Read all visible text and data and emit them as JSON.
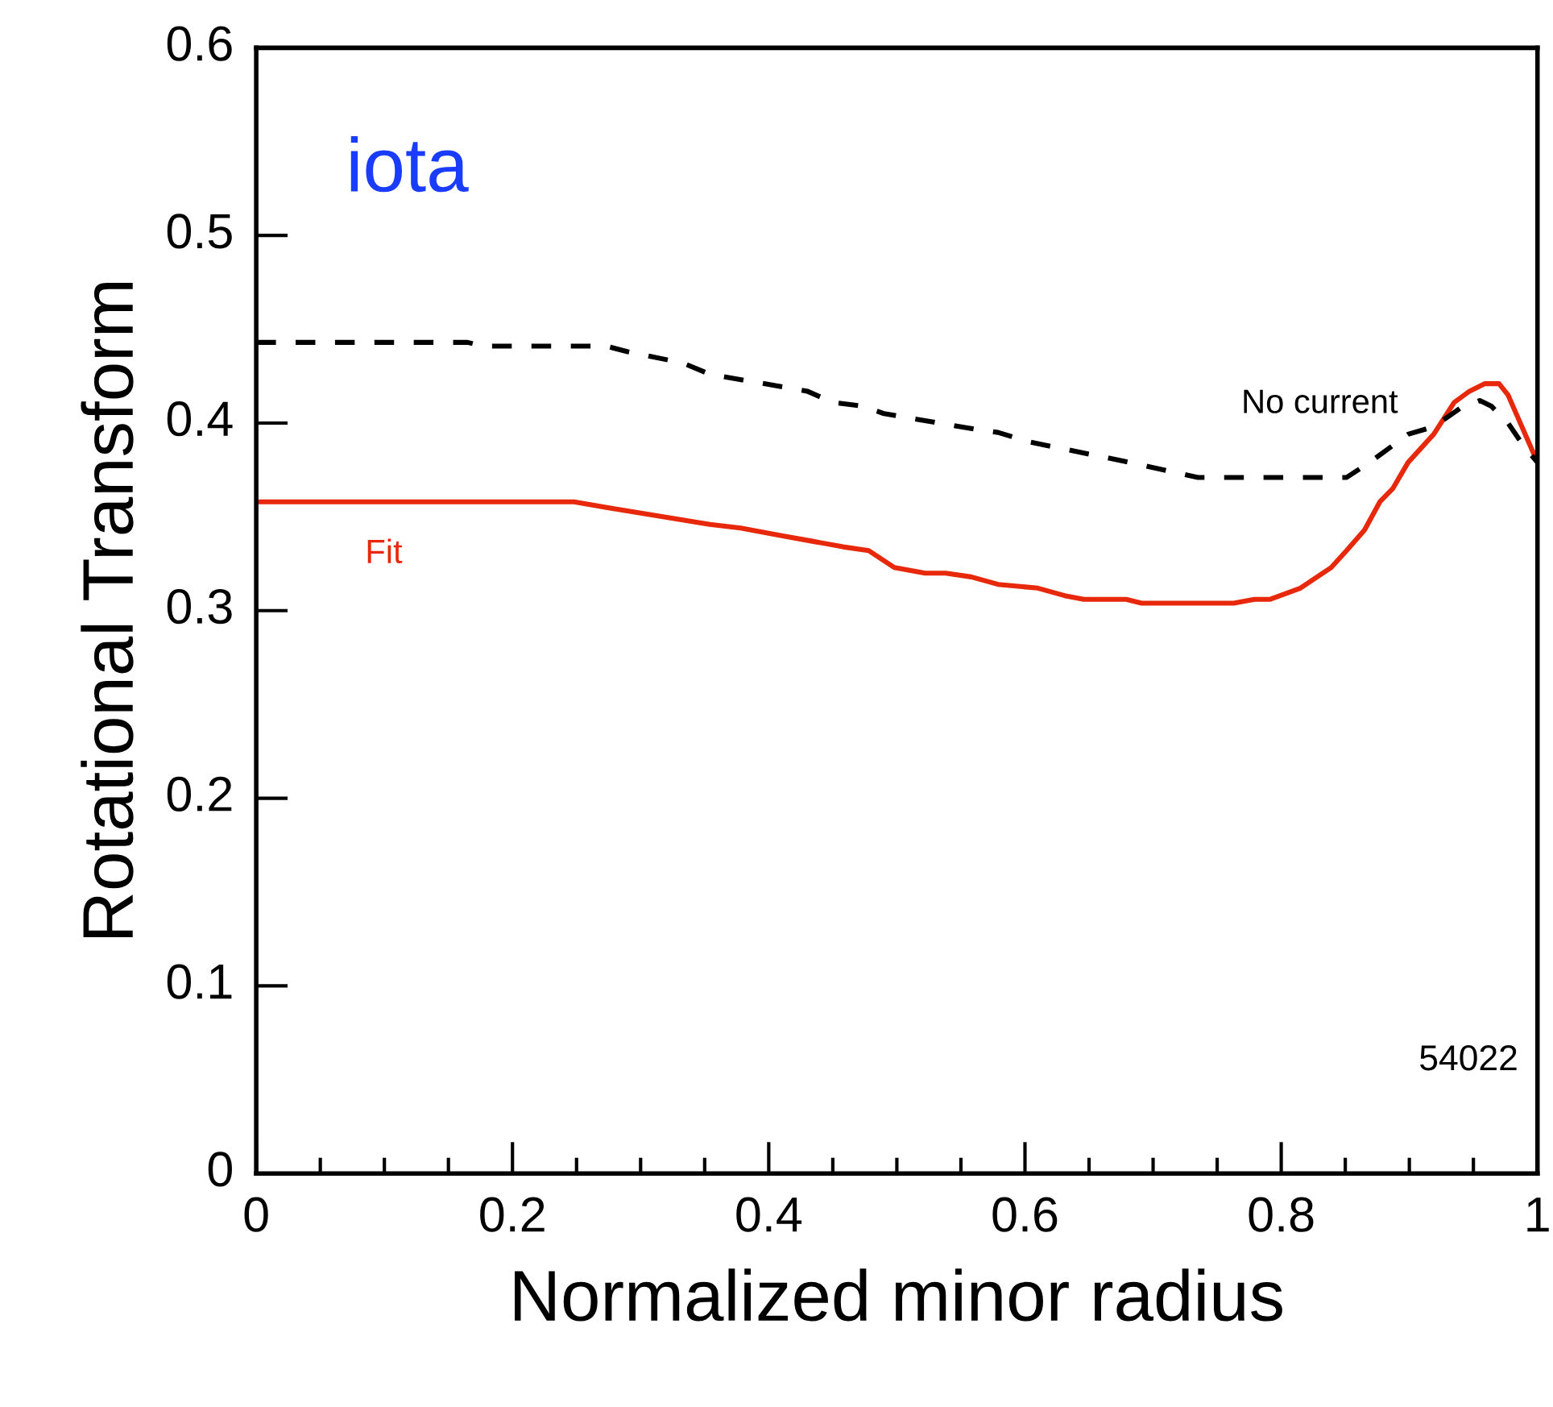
{
  "chart_data": {
    "type": "line",
    "xlabel": "Normalized minor radius",
    "ylabel": "Rotational Transform",
    "xlim": [
      0,
      1
    ],
    "ylim": [
      0,
      0.6
    ],
    "xticks": [
      0,
      0.2,
      0.4,
      0.6,
      0.8,
      1
    ],
    "yticks": [
      0,
      0.1,
      0.2,
      0.3,
      0.4,
      0.5,
      0.6
    ],
    "grid": false,
    "legend": false,
    "marker": "none",
    "annotations": [
      "iota",
      "54022"
    ],
    "series": [
      {
        "name": "Fit",
        "color": "#e8280a",
        "line_style": "solid",
        "x": [
          0,
          0.248,
          0.282,
          0.354,
          0.378,
          0.41,
          0.434,
          0.458,
          0.478,
          0.498,
          0.522,
          0.538,
          0.558,
          0.579,
          0.61,
          0.631,
          0.646,
          0.679,
          0.691,
          0.763,
          0.779,
          0.791,
          0.815,
          0.839,
          0.851,
          0.865,
          0.877,
          0.887,
          0.899,
          0.919,
          0.935,
          0.947,
          0.959,
          0.97,
          0.977,
          1.0
        ],
        "values": [
          0.358,
          0.358,
          0.354,
          0.346,
          0.344,
          0.34,
          0.337,
          0.334,
          0.332,
          0.323,
          0.32,
          0.32,
          0.318,
          0.314,
          0.312,
          0.308,
          0.306,
          0.306,
          0.304,
          0.304,
          0.306,
          0.306,
          0.312,
          0.323,
          0.332,
          0.343,
          0.358,
          0.365,
          0.379,
          0.394,
          0.411,
          0.417,
          0.421,
          0.421,
          0.415,
          0.379
        ]
      },
      {
        "name": "No current",
        "color": "#000000",
        "line_style": "dashed",
        "x": [
          0,
          0.165,
          0.177,
          0.273,
          0.29,
          0.333,
          0.354,
          0.43,
          0.45,
          0.474,
          0.49,
          0.567,
          0.579,
          0.603,
          0.682,
          0.735,
          0.851,
          0.869,
          0.899,
          0.919,
          0.94,
          0.955,
          0.964,
          0.977,
          0.989,
          1.0
        ],
        "values": [
          0.443,
          0.443,
          0.441,
          0.441,
          0.438,
          0.432,
          0.426,
          0.417,
          0.411,
          0.409,
          0.405,
          0.396,
          0.395,
          0.39,
          0.379,
          0.371,
          0.371,
          0.379,
          0.394,
          0.398,
          0.408,
          0.412,
          0.409,
          0.4,
          0.388,
          0.379
        ]
      }
    ]
  }
}
